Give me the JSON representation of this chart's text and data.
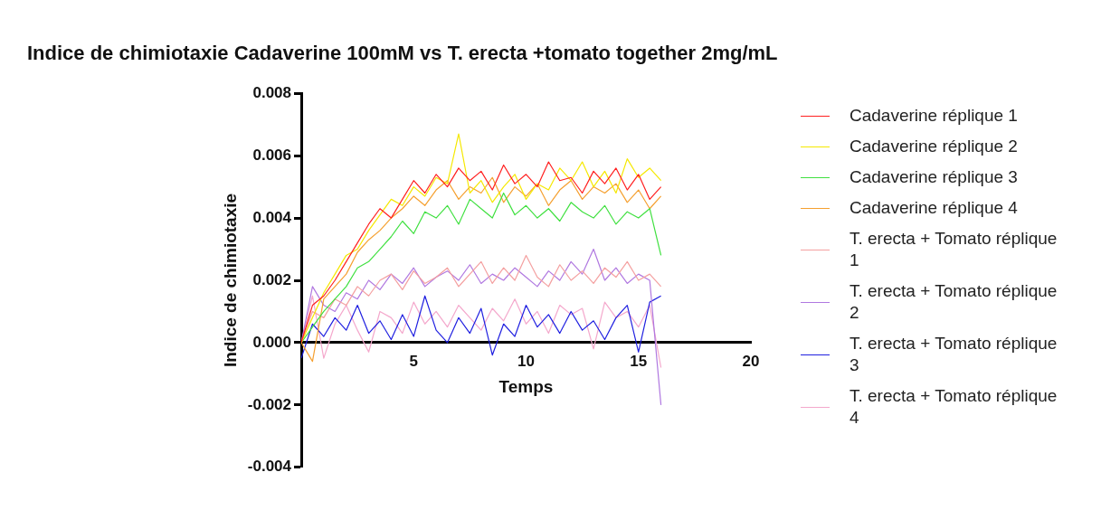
{
  "chart_data": {
    "type": "line",
    "title": "Indice de chimiotaxie Cadaverine 100mM vs T. erecta  +tomato together 2mg/mL",
    "xlabel": "Temps",
    "ylabel": "Indice de chimiotaxie",
    "legend": "right",
    "marker": "none",
    "xlim": [
      0,
      20
    ],
    "xticks": [
      5,
      10,
      15,
      20
    ],
    "ylim": [
      -0.004,
      0.008
    ],
    "yticks": [
      {
        "value": -0.004,
        "label": "-0.004"
      },
      {
        "value": -0.002,
        "label": "-0.002"
      },
      {
        "value": 0,
        "label": "0.000"
      },
      {
        "value": 0.002,
        "label": "0.002"
      },
      {
        "value": 0.004,
        "label": "0.004"
      },
      {
        "value": 0.006,
        "label": "0.006"
      },
      {
        "value": 0.008,
        "label": "0.008"
      }
    ],
    "x": [
      0,
      0.5,
      1,
      1.5,
      2,
      2.5,
      3,
      3.5,
      4,
      4.5,
      5,
      5.5,
      6,
      6.5,
      7,
      7.5,
      8,
      8.5,
      9,
      9.5,
      10,
      10.5,
      11,
      11.5,
      12,
      12.5,
      13,
      13.5,
      14,
      14.5,
      15,
      15.5,
      16
    ],
    "series": [
      {
        "name": "Cadaverine réplique 1",
        "color": "#ff2020",
        "values": [
          0,
          0.0012,
          0.0015,
          0.002,
          0.0026,
          0.0032,
          0.0038,
          0.0043,
          0.004,
          0.0046,
          0.0052,
          0.0048,
          0.0054,
          0.005,
          0.0056,
          0.0052,
          0.0055,
          0.0049,
          0.0057,
          0.0051,
          0.0054,
          0.005,
          0.0058,
          0.0052,
          0.0053,
          0.0048,
          0.0055,
          0.0051,
          0.0056,
          0.0049,
          0.0054,
          0.0046,
          0.005
        ]
      },
      {
        "name": "Cadaverine réplique 2",
        "color": "#f5e800",
        "values": [
          0,
          0.0008,
          0.0016,
          0.0022,
          0.0028,
          0.003,
          0.0036,
          0.0041,
          0.0046,
          0.0044,
          0.005,
          0.0047,
          0.0053,
          0.0051,
          0.0067,
          0.0048,
          0.0052,
          0.0045,
          0.005,
          0.0054,
          0.0046,
          0.0051,
          0.0049,
          0.0056,
          0.0052,
          0.0058,
          0.005,
          0.0055,
          0.0048,
          0.0059,
          0.0053,
          0.0056,
          0.0052
        ]
      },
      {
        "name": "Cadaverine réplique 3",
        "color": "#40e040",
        "values": [
          0,
          0.0005,
          0.001,
          0.0014,
          0.0018,
          0.0024,
          0.0026,
          0.003,
          0.0034,
          0.0039,
          0.0035,
          0.0042,
          0.004,
          0.0044,
          0.0038,
          0.0046,
          0.0043,
          0.004,
          0.0048,
          0.0041,
          0.0044,
          0.004,
          0.0043,
          0.0039,
          0.0045,
          0.0042,
          0.004,
          0.0044,
          0.0038,
          0.0042,
          0.004,
          0.0043,
          0.0028
        ]
      },
      {
        "name": "Cadaverine réplique 4",
        "color": "#f5a030",
        "values": [
          0,
          -0.0006,
          0.0014,
          0.0018,
          0.0022,
          0.0029,
          0.0033,
          0.0036,
          0.004,
          0.0043,
          0.0047,
          0.0044,
          0.0049,
          0.0052,
          0.0046,
          0.005,
          0.0048,
          0.0053,
          0.0045,
          0.005,
          0.0047,
          0.0051,
          0.0044,
          0.0049,
          0.0052,
          0.0046,
          0.005,
          0.0048,
          0.0051,
          0.0045,
          0.0049,
          0.0043,
          0.0047
        ]
      },
      {
        "name": "T. erecta + Tomato réplique 1",
        "color": "#f4a0a0",
        "values": [
          0,
          0.001,
          0.0008,
          0.0014,
          0.0012,
          0.0018,
          0.0015,
          0.002,
          0.0022,
          0.0017,
          0.0023,
          0.0019,
          0.0021,
          0.0024,
          0.0018,
          0.0022,
          0.0026,
          0.0019,
          0.0024,
          0.002,
          0.0028,
          0.0021,
          0.0018,
          0.0025,
          0.002,
          0.0023,
          0.0019,
          0.0024,
          0.0021,
          0.0026,
          0.002,
          0.0022,
          0.0018
        ]
      },
      {
        "name": "T. erecta + Tomato réplique 2",
        "color": "#b078e0",
        "values": [
          0,
          0.0018,
          0.0012,
          0.001,
          0.0016,
          0.0014,
          0.002,
          0.0017,
          0.0022,
          0.0019,
          0.0024,
          0.0018,
          0.0021,
          0.0023,
          0.002,
          0.0025,
          0.0019,
          0.0022,
          0.002,
          0.0024,
          0.0021,
          0.0018,
          0.0023,
          0.002,
          0.0026,
          0.0022,
          0.003,
          0.002,
          0.0024,
          0.0019,
          0.0022,
          0.002,
          -0.002
        ]
      },
      {
        "name": "T. erecta + Tomato réplique 3",
        "color": "#2020e0",
        "values": [
          -0.0005,
          0.0006,
          0.0002,
          0.0008,
          0.0004,
          0.0012,
          0.0003,
          0.0007,
          0.0001,
          0.0009,
          0.0002,
          0.0015,
          0.0004,
          0,
          0.0008,
          0.0003,
          0.0011,
          -0.0004,
          0.0006,
          0.0002,
          0.0012,
          0.0005,
          0.0009,
          0.0003,
          0.001,
          0.0004,
          0.0007,
          0.0001,
          0.0008,
          0.0012,
          -0.0003,
          0.0013,
          0.0015
        ]
      },
      {
        "name": "T. erecta + Tomato réplique 4",
        "color": "#f4a8cc",
        "values": [
          0,
          0.0015,
          -0.0005,
          0.0006,
          0.0012,
          0.0004,
          -0.0003,
          0.001,
          0.0008,
          0.0003,
          0.0013,
          0.0006,
          0.001,
          0.0005,
          0.0012,
          0.0008,
          0.0004,
          0.0011,
          0.0007,
          0.0014,
          0.0006,
          0.001,
          0.0003,
          0.0012,
          0.0009,
          0.0011,
          -0.0002,
          0.0013,
          0.0008,
          0.001,
          0.0005,
          0.0012,
          -0.0008
        ]
      }
    ]
  }
}
